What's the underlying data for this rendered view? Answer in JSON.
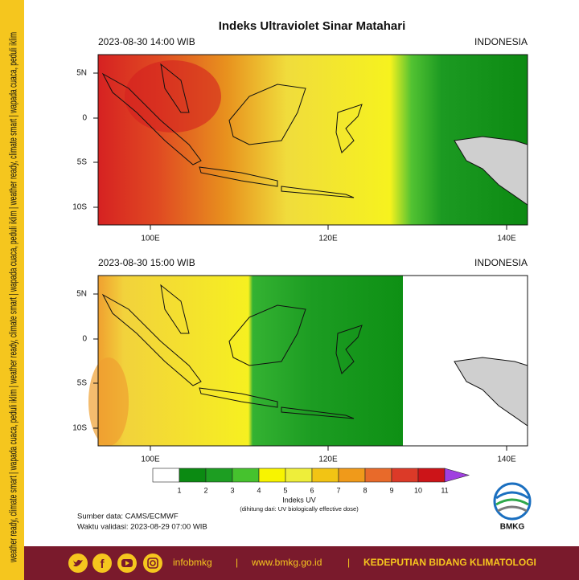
{
  "side_banner": "weather ready, climate smart  |  wapada cuaca, peduli iklim  |  weather ready, climate smart  |  wapada cuaca, peduli iklim  |  weather ready, climate smart  |  wapada cuaca, peduli iklim",
  "title": "Indeks Ultraviolet Sinar Matahari",
  "maps": [
    {
      "timestamp": "2023-08-30  14:00 WIB",
      "region": "INDONESIA",
      "lat_labels": [
        "5N",
        "0",
        "5S",
        "10S"
      ],
      "lon_labels": [
        "100E",
        "120E",
        "140E"
      ]
    },
    {
      "timestamp": "2023-08-30  15:00 WIB",
      "region": "INDONESIA",
      "lat_labels": [
        "5N",
        "0",
        "5S",
        "10S"
      ],
      "lon_labels": [
        "100E",
        "120E",
        "140E"
      ]
    }
  ],
  "colorbar": {
    "labels": [
      1,
      2,
      3,
      4,
      5,
      6,
      7,
      8,
      9,
      10,
      11
    ],
    "colors": [
      "#ffffff",
      "#0b8a12",
      "#1d9e22",
      "#46c22e",
      "#f8f400",
      "#eeee3a",
      "#f2c414",
      "#f09a1a",
      "#e86a2a",
      "#dc3a28",
      "#cc1418"
    ],
    "extend_color": "#a040e0",
    "title": "Indeks UV",
    "note": "(dihitung dari: UV biologically effective dose)"
  },
  "source": "Sumber data: CAMS/ECMWF",
  "validity": "Waktu validasi: 2023-08-29 07:00 WIB",
  "logo": "BMKG",
  "footer": {
    "handle": "infobmkg",
    "separator": "|",
    "website": "www.bmkg.go.id",
    "department": "KEDEPUTIAN BIDANG KLIMATOLOGI"
  }
}
